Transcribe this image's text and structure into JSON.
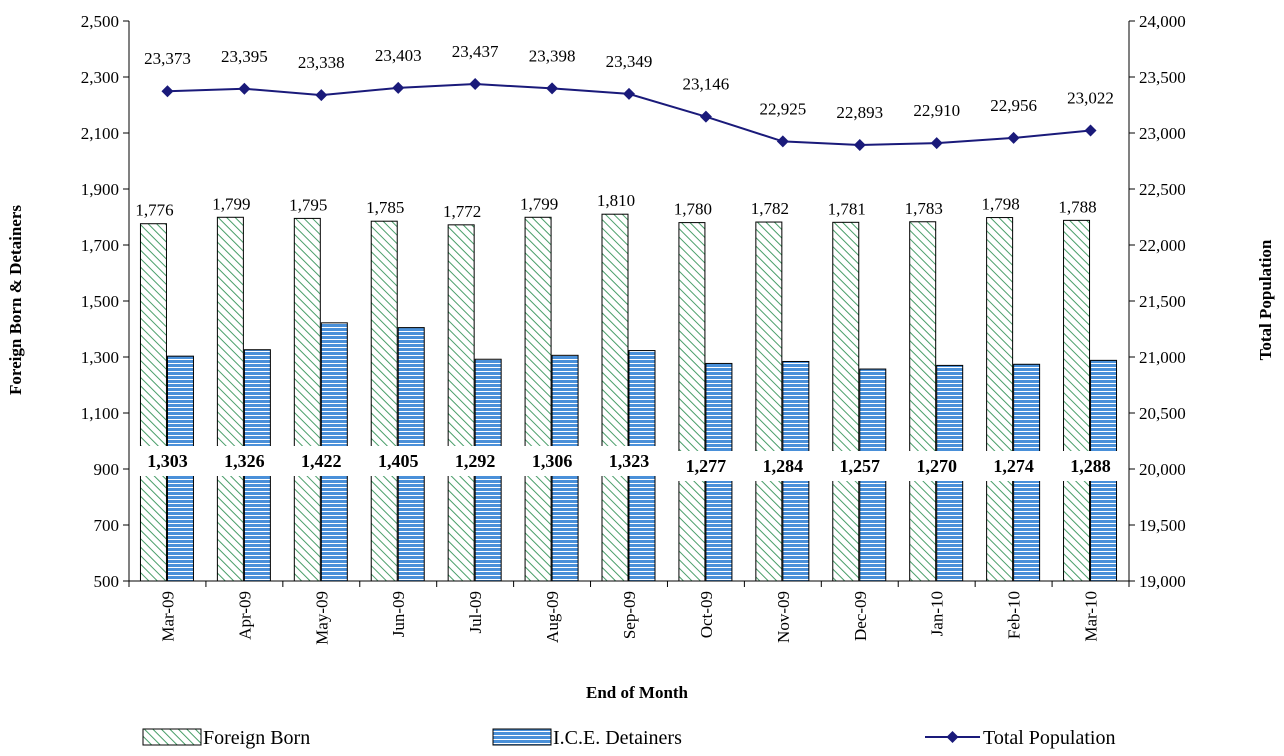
{
  "chart_data": {
    "type": "bar",
    "categories": [
      "Mar-09",
      "Apr-09",
      "May-09",
      "Jun-09",
      "Jul-09",
      "Aug-09",
      "Sep-09",
      "Oct-09",
      "Nov-09",
      "Dec-09",
      "Jan-10",
      "Feb-10",
      "Mar-10"
    ],
    "series": [
      {
        "name": "Foreign Born",
        "type": "bar",
        "axis": "left",
        "pattern": "diagonal-hatch",
        "fill": "#ffffff",
        "pattern_color": "#4a9e6a",
        "values": [
          1776,
          1799,
          1795,
          1785,
          1772,
          1799,
          1810,
          1780,
          1782,
          1781,
          1783,
          1798,
          1788
        ],
        "labels": [
          "1,776",
          "1,799",
          "1,795",
          "1,785",
          "1,772",
          "1,799",
          "1,810",
          "1,780",
          "1,782",
          "1,781",
          "1,783",
          "1,798",
          "1,788"
        ]
      },
      {
        "name": "I.C.E. Detainers",
        "type": "bar",
        "axis": "left",
        "pattern": "horizontal-stripes",
        "fill": "#4a90d9",
        "pattern_color": "#ffffff",
        "values": [
          1303,
          1326,
          1422,
          1405,
          1292,
          1306,
          1323,
          1277,
          1284,
          1257,
          1270,
          1274,
          1288
        ],
        "labels": [
          "1,303",
          "1,326",
          "1,422",
          "1,405",
          "1,292",
          "1,306",
          "1,323",
          "1,277",
          "1,284",
          "1,257",
          "1,270",
          "1,274",
          "1,288"
        ]
      },
      {
        "name": "Total Population",
        "type": "line",
        "axis": "right",
        "marker": "diamond",
        "color": "#1a1a7a",
        "values": [
          23373,
          23395,
          23338,
          23403,
          23437,
          23398,
          23349,
          23146,
          22925,
          22893,
          22910,
          22956,
          23022
        ],
        "labels": [
          "23,373",
          "23,395",
          "23,338",
          "23,403",
          "23,437",
          "23,398",
          "23,349",
          "23,146",
          "22,925",
          "22,893",
          "22,910",
          "22,956",
          "23,022"
        ]
      }
    ],
    "ylim_left": [
      500,
      2500
    ],
    "ylim_right": [
      19000,
      24000
    ],
    "left_ticks": [
      "500",
      "700",
      "900",
      "1,100",
      "1,300",
      "1,500",
      "1,700",
      "1,900",
      "2,100",
      "2,300",
      "2,500"
    ],
    "right_ticks": [
      "19,000",
      "19,500",
      "20,000",
      "20,500",
      "21,000",
      "21,500",
      "22,000",
      "22,500",
      "23,000",
      "23,500",
      "24,000"
    ],
    "xlabel": "End of Month",
    "ylabel_left": "Foreign Born & Detainers",
    "ylabel_right": "Total Population",
    "grid": false,
    "legend": {
      "position": "bottom",
      "items": [
        "Foreign Born",
        "I.C.E. Detainers",
        "Total Population"
      ]
    }
  }
}
